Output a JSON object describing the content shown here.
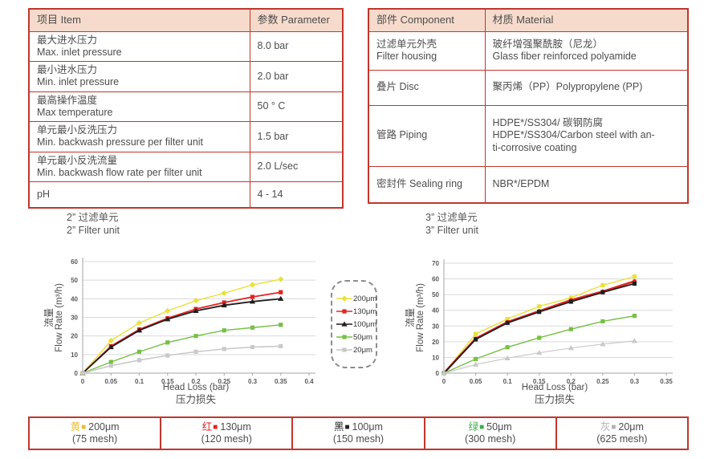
{
  "colors": {
    "border_red": "#c2362b",
    "header_bg": "#f6dbcc",
    "grid": "#d9d9d9",
    "axis": "#a6a6a6"
  },
  "spec_table": {
    "headers": [
      "项目 Item",
      "参数 Parameter"
    ],
    "rows": [
      {
        "item": "最大进水压力\nMax. inlet pressure",
        "value": "8.0 bar"
      },
      {
        "item": "最小进水压力\nMin. inlet pressure",
        "value": "2.0 bar"
      },
      {
        "item": "最高操作温度\nMax temperature",
        "value": "50 ° C"
      },
      {
        "item": "单元最小反洗压力\nMin. backwash pressure per filter unit",
        "value": "1.5 bar"
      },
      {
        "item": "单元最小反洗流量\nMin. backwash flow rate per filter unit",
        "value": "2.0 L/sec"
      },
      {
        "item": "pH",
        "value": "4 - 14"
      }
    ]
  },
  "material_table": {
    "headers": [
      "部件 Component",
      "材质 Material"
    ],
    "rows": [
      {
        "component": "过滤单元外壳\nFilter housing",
        "material": "玻纤增强聚酰胺（尼龙）\nGlass fiber reinforced polyamide"
      },
      {
        "component": "叠片 Disc",
        "material": "聚丙烯（PP）Polypropylene (PP)"
      },
      {
        "component": "管路 Piping",
        "material": "HDPE*/SS304/ 碳钢防腐\nHDPE*/SS304/Carbon steel with an-\nti-corrosive coating"
      },
      {
        "component": "密封件 Sealing ring",
        "material": "NBR*/EPDM"
      }
    ]
  },
  "chart_data": [
    {
      "type": "line",
      "title": "2” 过滤单元\n2” Filter unit",
      "ylabel_cn": "流量",
      "ylabel": "Flow Rate (m³/h)",
      "xlabel": "Head Loss (bar)",
      "xlabel_cn": "压力损失",
      "xlim": [
        0,
        0.4
      ],
      "ylim": [
        0,
        60
      ],
      "grid": "horizontal",
      "xticks": [
        0,
        0.05,
        0.1,
        0.15,
        0.2,
        0.25,
        0.3,
        0.35,
        0.4
      ],
      "xtick_labels": [
        "0",
        "0.05",
        "0.1",
        "0.15",
        "0.2",
        "0.25",
        "0.3",
        "0.35",
        "0.4"
      ],
      "yticks": [
        0,
        10,
        20,
        30,
        40,
        50,
        60
      ],
      "x": [
        0,
        0.05,
        0.1,
        0.15,
        0.2,
        0.25,
        0.3,
        0.35
      ],
      "series": [
        {
          "name": "200μm",
          "color": "#e9e138",
          "marker": "diamond",
          "lw": 1.4,
          "values": [
            0,
            17.5,
            27,
            33.5,
            39,
            43,
            47.5,
            50.5
          ]
        },
        {
          "name": "130μm",
          "color": "#e32322",
          "marker": "square",
          "lw": 1.8,
          "values": [
            0,
            14.5,
            23.5,
            29.5,
            34.5,
            38,
            41,
            43.5
          ]
        },
        {
          "name": "100μm",
          "color": "#1f1f1f",
          "marker": "triangle",
          "lw": 1.8,
          "values": [
            0,
            14,
            23,
            29,
            33.5,
            36.5,
            38.5,
            40
          ]
        },
        {
          "name": "50μm",
          "color": "#76c044",
          "marker": "square",
          "lw": 1.4,
          "values": [
            0,
            6,
            11.5,
            16.5,
            20,
            23,
            24.5,
            26
          ]
        },
        {
          "name": "20μm",
          "color": "#c9c9c9",
          "marker": "square",
          "lw": 1.6,
          "values": [
            0,
            4,
            7,
            9.5,
            11.5,
            13,
            14,
            14.5
          ]
        }
      ]
    },
    {
      "type": "line",
      "title": "3” 过滤单元\n3” Filter unit",
      "ylabel_cn": "流量",
      "ylabel": "Flow Rate (m³/h)",
      "xlabel": "Head Loss (bar)",
      "xlabel_cn": "压力损失",
      "xlim": [
        0,
        0.35
      ],
      "ylim": [
        0,
        70
      ],
      "grid": "horizontal",
      "xticks": [
        0,
        0.05,
        0.1,
        0.15,
        0.2,
        0.25,
        0.3,
        0.35
      ],
      "xtick_labels": [
        "0",
        "0.05",
        "0.1",
        "0.15",
        "0.2",
        "0.25",
        "0.3",
        "0.35"
      ],
      "yticks": [
        0,
        10,
        20,
        30,
        40,
        50,
        60,
        70
      ],
      "x": [
        0,
        0.05,
        0.1,
        0.15,
        0.2,
        0.25,
        0.3
      ],
      "series": [
        {
          "name": "200μm",
          "color": "#e9e138",
          "marker": "square",
          "lw": 1.4,
          "values": [
            0,
            25,
            34.5,
            42.5,
            48,
            56,
            61.5
          ]
        },
        {
          "name": "130μm",
          "color": "#e32322",
          "marker": "circle",
          "lw": 2.6,
          "values": [
            0,
            22,
            32.5,
            39.5,
            46.5,
            52,
            58.5
          ]
        },
        {
          "name": "100μm",
          "color": "#1f1f1f",
          "marker": "square",
          "lw": 1.8,
          "values": [
            0,
            21.5,
            32,
            39,
            45.5,
            51.5,
            57
          ]
        },
        {
          "name": "50μm",
          "color": "#76c044",
          "marker": "square",
          "lw": 1.4,
          "values": [
            0,
            9,
            16.5,
            22.5,
            28,
            33,
            36.5
          ]
        },
        {
          "name": "20μm",
          "color": "#c9c9c9",
          "marker": "triangle",
          "lw": 1.2,
          "values": [
            0,
            5.5,
            9.5,
            13,
            16,
            18.5,
            20.5
          ]
        }
      ]
    }
  ],
  "chart_legend": {
    "items": [
      {
        "label": "200μm",
        "color": "#e9e138",
        "marker": "diamond"
      },
      {
        "label": "130μm",
        "color": "#e32322",
        "marker": "square"
      },
      {
        "label": "100μm",
        "color": "#1f1f1f",
        "marker": "triangle"
      },
      {
        "label": "50μm",
        "color": "#76c044",
        "marker": "square"
      },
      {
        "label": "20μm",
        "color": "#c9c9c9",
        "marker": "square"
      }
    ]
  },
  "bottom_legend": [
    {
      "cn": "黄",
      "swatch": "■",
      "color": "#e8bf2e",
      "label": "200μm",
      "mesh": "(75 mesh)"
    },
    {
      "cn": "红",
      "swatch": "■",
      "color": "#e32322",
      "label": "130μm",
      "mesh": "(120 mesh)"
    },
    {
      "cn": "黑",
      "swatch": "■",
      "color": "#1f1f1f",
      "label": "100μm",
      "mesh": "(150 mesh)"
    },
    {
      "cn": "绿",
      "swatch": "■",
      "color": "#3faf4c",
      "label": "50μm",
      "mesh": "(300 mesh)"
    },
    {
      "cn": "灰",
      "swatch": "■",
      "color": "#b3b3b3",
      "label": "20μm",
      "mesh": "(625 mesh)"
    }
  ]
}
